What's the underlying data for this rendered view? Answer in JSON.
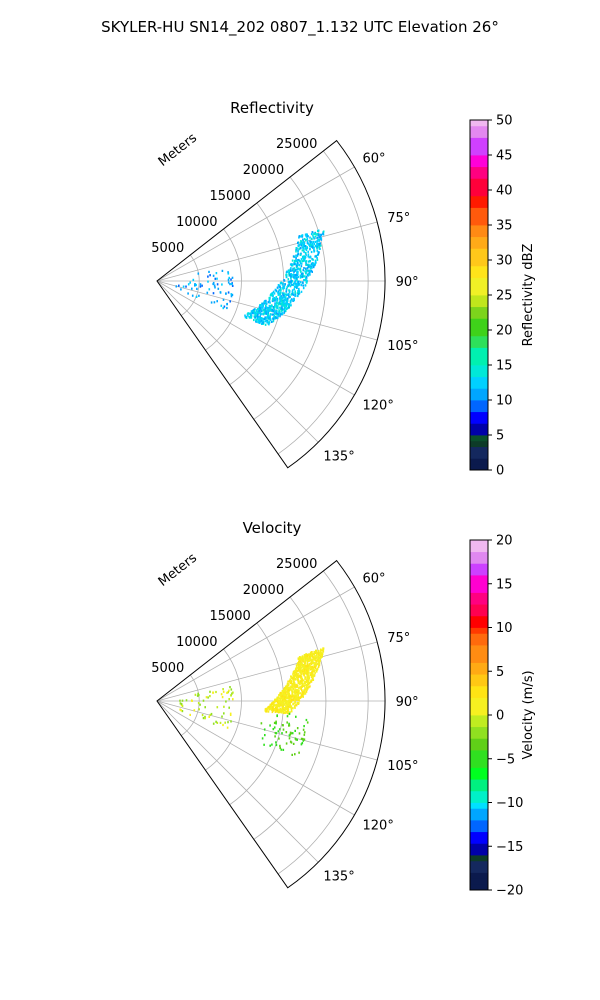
{
  "figure": {
    "suptitle": "SKYLER-HU  SN14_202  0807_1.132 UTC Elevation 26°"
  },
  "chart_data": [
    {
      "type": "polar-sector",
      "title": "Reflectivity",
      "radial_label": "Meters",
      "radial_ticks": [
        5000,
        10000,
        15000,
        20000,
        25000
      ],
      "radial_tick_labels": [
        "5000",
        "10000",
        "15000",
        "20000",
        "25000"
      ],
      "rlim": [
        0,
        27000
      ],
      "angle_ticks_deg": [
        60,
        75,
        90,
        105,
        120,
        135
      ],
      "angle_tick_labels": [
        "60°",
        "75°",
        "90°",
        "105°",
        "120°",
        "135°"
      ],
      "sector_deg": [
        52,
        145
      ],
      "grid": true,
      "colorbar": {
        "label": "Reflectivity dBZ",
        "min": 0,
        "max": 50,
        "ticks": [
          0,
          5,
          10,
          15,
          20,
          25,
          30,
          35,
          40,
          45,
          50
        ],
        "tick_labels": [
          "0",
          "5",
          "10",
          "15",
          "20",
          "25",
          "30",
          "35",
          "40",
          "45",
          "50"
        ]
      },
      "echo_regions": [
        {
          "az_deg": [
            72,
            112
          ],
          "range_m": [
            12000,
            20000
          ],
          "value": [
            10,
            14
          ]
        },
        {
          "az_deg": [
            78,
            112
          ],
          "range_m": [
            2000,
            9000
          ],
          "value": [
            9,
            12
          ]
        }
      ]
    },
    {
      "type": "polar-sector",
      "title": "Velocity",
      "radial_label": "Meters",
      "radial_ticks": [
        5000,
        10000,
        15000,
        20000,
        25000
      ],
      "radial_tick_labels": [
        "5000",
        "10000",
        "15000",
        "20000",
        "25000"
      ],
      "rlim": [
        0,
        27000
      ],
      "angle_ticks_deg": [
        60,
        75,
        90,
        105,
        120,
        135
      ],
      "angle_tick_labels": [
        "60°",
        "75°",
        "90°",
        "105°",
        "120°",
        "135°"
      ],
      "sector_deg": [
        52,
        145
      ],
      "grid": true,
      "colorbar": {
        "label": "Velocity (m/s)",
        "min": -20,
        "max": 20,
        "ticks": [
          -20,
          -15,
          -10,
          -5,
          0,
          5,
          10,
          15,
          20
        ],
        "tick_labels": [
          "−20",
          "−15",
          "−10",
          "−5",
          "0",
          "5",
          "10",
          "15",
          "20"
        ]
      },
      "echo_regions": [
        {
          "az_deg": [
            72,
            95
          ],
          "range_m": [
            14000,
            20000
          ],
          "value": [
            0,
            2
          ]
        },
        {
          "az_deg": [
            95,
            112
          ],
          "range_m": [
            12000,
            18000
          ],
          "value": [
            -6,
            -3
          ]
        },
        {
          "az_deg": [
            78,
            112
          ],
          "range_m": [
            2000,
            9000
          ],
          "value": [
            -3,
            1
          ]
        }
      ]
    }
  ]
}
